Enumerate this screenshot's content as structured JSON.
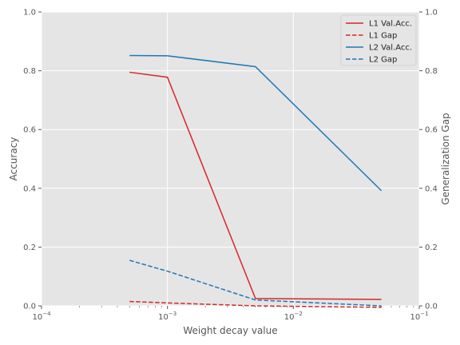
{
  "chart_data": {
    "type": "line",
    "xlabel": "Weight decay value",
    "ylabel_left": "Accuracy",
    "ylabel_right": "Generalization Gap",
    "xscale": "log",
    "xlim": [
      0.0001,
      0.1
    ],
    "ylim": [
      0,
      1
    ],
    "y2lim": [
      0,
      1
    ],
    "x_ticks": [
      {
        "value": 0.0001,
        "base": "10",
        "exp": "−4"
      },
      {
        "value": 0.001,
        "base": "10",
        "exp": "−3"
      },
      {
        "value": 0.01,
        "base": "10",
        "exp": "−2"
      },
      {
        "value": 0.1,
        "base": "10",
        "exp": "−1"
      }
    ],
    "y_ticks": [
      "0.0",
      "0.2",
      "0.4",
      "0.6",
      "0.8",
      "1.0"
    ],
    "y2_ticks": [
      "0.0",
      "0.2",
      "0.4",
      "0.6",
      "0.8",
      "1.0"
    ],
    "grid": true,
    "legend_position": "top-right",
    "series": [
      {
        "name": "L1 Val.Acc.",
        "color": "#d62728",
        "dash": "solid",
        "axis": "left",
        "x": [
          0.0005,
          0.001,
          0.005,
          0.05
        ],
        "y": [
          0.795,
          0.778,
          0.025,
          0.022
        ]
      },
      {
        "name": "L1 Gap",
        "color": "#d62728",
        "dash": "dashed",
        "axis": "right",
        "x": [
          0.0005,
          0.001,
          0.005,
          0.05
        ],
        "y": [
          0.015,
          0.01,
          0.0,
          -0.005
        ]
      },
      {
        "name": "L2 Val.Acc.",
        "color": "#1f77b4",
        "dash": "solid",
        "axis": "left",
        "x": [
          0.0005,
          0.001,
          0.005,
          0.05
        ],
        "y": [
          0.852,
          0.851,
          0.814,
          0.392
        ]
      },
      {
        "name": "L2 Gap",
        "color": "#1f77b4",
        "dash": "dashed",
        "axis": "right",
        "x": [
          0.0005,
          0.001,
          0.005,
          0.05
        ],
        "y": [
          0.155,
          0.118,
          0.02,
          0.0
        ]
      }
    ]
  }
}
